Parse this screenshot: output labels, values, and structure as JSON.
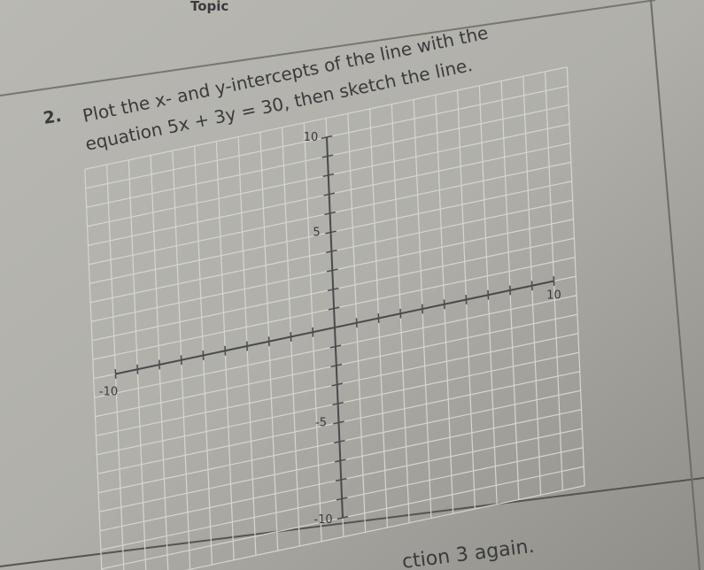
{
  "header": {
    "title": "Topic"
  },
  "problem": {
    "number": "2.",
    "lines": [
      "Plot the x- and y-intercepts of the line with the",
      "equation 5x + 3y = 30, then sketch the line."
    ]
  },
  "graph": {
    "y_labels": {
      "top": "10",
      "upper": "5",
      "lower": "-5",
      "bottom": "-10"
    },
    "x_labels": {
      "left": "-10",
      "right": "10"
    }
  },
  "footer": {
    "text": "ction 3 again."
  }
}
